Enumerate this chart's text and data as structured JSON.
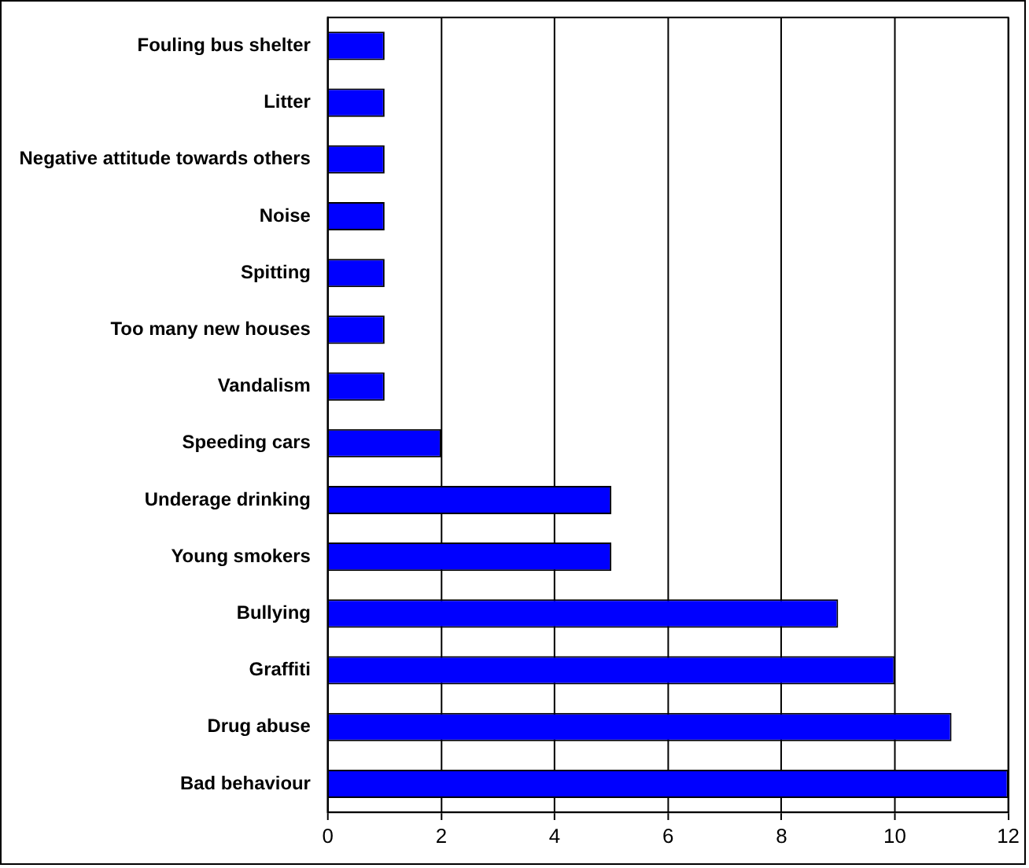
{
  "chart_data": {
    "type": "bar",
    "orientation": "horizontal",
    "categories": [
      "Fouling bus shelter",
      "Litter",
      "Negative attitude towards others",
      "Noise",
      "Spitting",
      "Too many new houses",
      "Vandalism",
      "Speeding cars",
      "Underage drinking",
      "Young smokers",
      "Bullying",
      "Graffiti",
      "Drug abuse",
      "Bad behaviour"
    ],
    "values": [
      1,
      1,
      1,
      1,
      1,
      1,
      1,
      2,
      5,
      5,
      9,
      10,
      11,
      12
    ],
    "color": "#0000ff",
    "xlim": [
      0,
      12
    ],
    "xticks": [
      0,
      2,
      4,
      6,
      8,
      10,
      12
    ],
    "grid": "x",
    "legend": false
  }
}
